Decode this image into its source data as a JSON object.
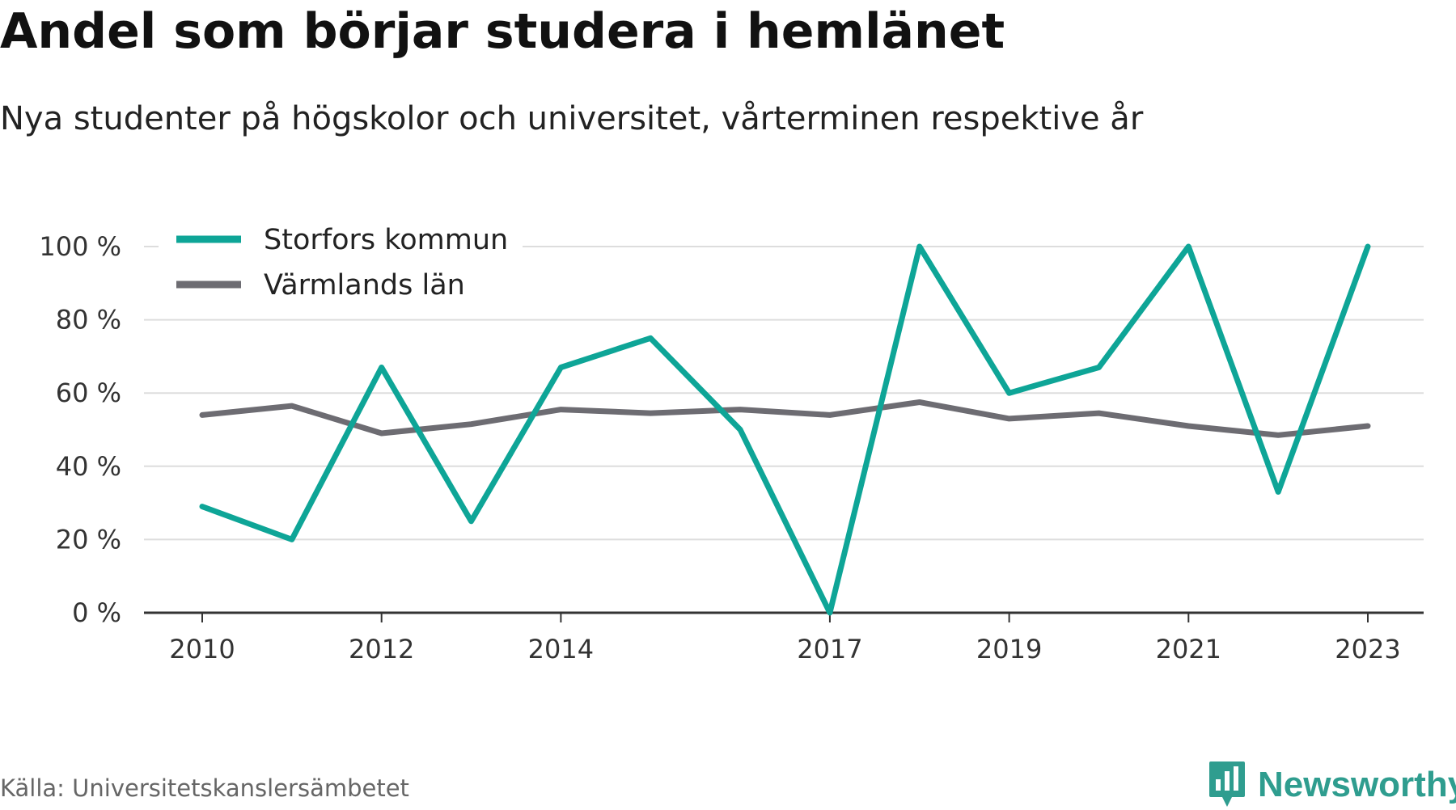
{
  "title": "Andel som börjar studera i hemlänet",
  "subtitle": "Nya studenter på högskolor och universitet, vårterminen respektive år",
  "source": "Källa: Universitetskanslersämbetet",
  "brand": "Newsworthy",
  "chart_data": {
    "type": "line",
    "x": [
      2010,
      2011,
      2012,
      2013,
      2014,
      2015,
      2016,
      2017,
      2018,
      2019,
      2020,
      2021,
      2022,
      2023
    ],
    "x_tick_labels": [
      "2010",
      "2012",
      "2014",
      "2017",
      "2019",
      "2021",
      "2023"
    ],
    "y_tick_labels": [
      "0 %",
      "20 %",
      "40 %",
      "60 %",
      "80 %",
      "100 %"
    ],
    "ylim": [
      0,
      100
    ],
    "grid": true,
    "legend_position": "top-left",
    "series": [
      {
        "name": "Storfors kommun",
        "color": "#0ea597",
        "values": [
          29,
          20,
          67,
          25,
          67,
          75,
          50,
          0,
          100,
          60,
          67,
          100,
          33,
          100
        ]
      },
      {
        "name": "Värmlands län",
        "color": "#6d6c72",
        "values": [
          54,
          56.5,
          49,
          51.5,
          55.5,
          54.5,
          55.5,
          54,
          57.5,
          53,
          54.5,
          51,
          48.5,
          51
        ]
      }
    ]
  }
}
